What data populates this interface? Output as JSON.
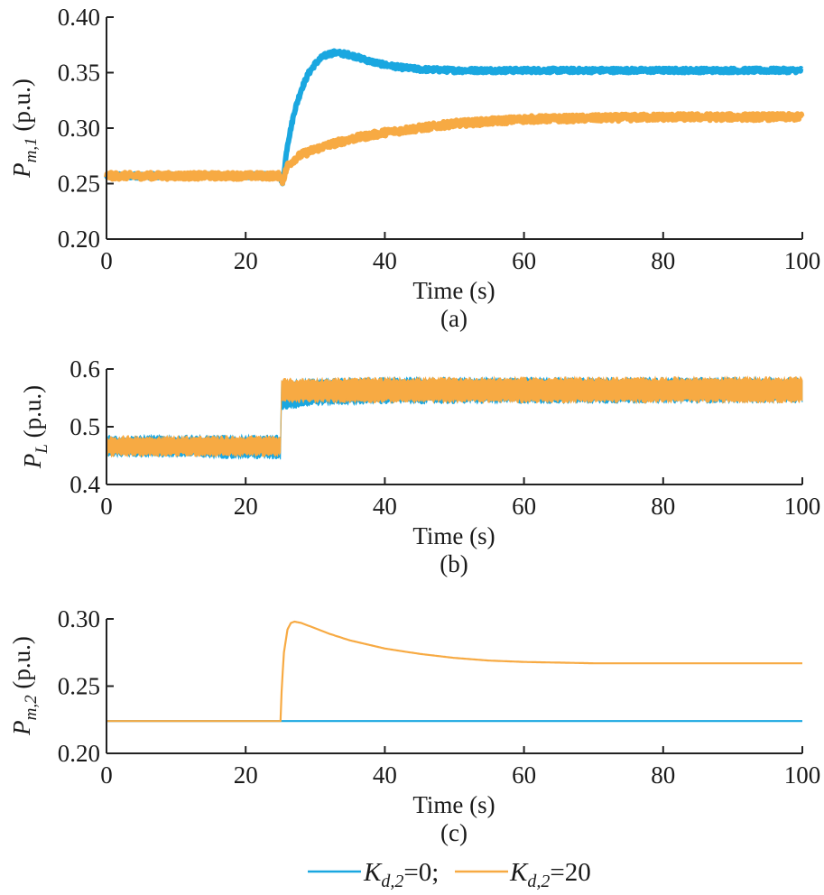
{
  "chart_data": [
    {
      "id": "a",
      "type": "line",
      "panel_label": "(a)",
      "xlabel": "Time (s)",
      "ylabel": "P_{m,1} (p.u.)",
      "ylabel_main": "P",
      "ylabel_sub": "m,1",
      "ylabel_unit": " (p.u.)",
      "xlim": [
        0,
        100
      ],
      "ylim": [
        0.2,
        0.4
      ],
      "xticks": [
        0,
        20,
        40,
        60,
        80,
        100
      ],
      "xtick_labels": [
        "0",
        "20",
        "40",
        "60",
        "80",
        "100"
      ],
      "yticks": [
        0.2,
        0.25,
        0.3,
        0.35,
        0.4
      ],
      "ytick_labels": [
        "0.20",
        "0.25",
        "0.30",
        "0.35",
        "0.40"
      ],
      "grid": false,
      "series": [
        {
          "name": "K_{d,2}=0",
          "color": "#1aa7e0",
          "noise_band": 0.004,
          "x": [
            0,
            25,
            25.3,
            26,
            27,
            28,
            29,
            30,
            31,
            32,
            33,
            34,
            35,
            36,
            38,
            40,
            42,
            45,
            50,
            60,
            70,
            80,
            90,
            100
          ],
          "y": [
            0.257,
            0.257,
            0.25,
            0.285,
            0.315,
            0.335,
            0.349,
            0.358,
            0.364,
            0.367,
            0.368,
            0.367,
            0.366,
            0.364,
            0.36,
            0.357,
            0.355,
            0.353,
            0.352,
            0.352,
            0.352,
            0.352,
            0.352,
            0.352
          ]
        },
        {
          "name": "K_{d,2}=20",
          "color": "#f7aa43",
          "noise_band": 0.006,
          "x": [
            0,
            25,
            25.3,
            26,
            27,
            28,
            30,
            32,
            35,
            40,
            45,
            50,
            55,
            60,
            70,
            80,
            90,
            100
          ],
          "y": [
            0.257,
            0.257,
            0.252,
            0.266,
            0.272,
            0.276,
            0.281,
            0.285,
            0.29,
            0.296,
            0.3,
            0.304,
            0.306,
            0.308,
            0.309,
            0.31,
            0.31,
            0.31
          ]
        }
      ]
    },
    {
      "id": "b",
      "type": "line",
      "panel_label": "(b)",
      "xlabel": "Time (s)",
      "ylabel": "P_L (p.u.)",
      "ylabel_main": "P",
      "ylabel_sub": "L",
      "ylabel_unit": " (p.u.)",
      "xlim": [
        0,
        100
      ],
      "ylim": [
        0.4,
        0.6
      ],
      "xticks": [
        0,
        20,
        40,
        60,
        80,
        100
      ],
      "xtick_labels": [
        "0",
        "20",
        "40",
        "60",
        "80",
        "100"
      ],
      "yticks": [
        0.4,
        0.5,
        0.6
      ],
      "ytick_labels": [
        "0.4",
        "0.5",
        "0.6"
      ],
      "grid": false,
      "series": [
        {
          "name": "K_{d,2}=0",
          "color": "#1aa7e0",
          "x": [
            0,
            10,
            25,
            25.01,
            30,
            40,
            100
          ],
          "y_low": [
            0.452,
            0.45,
            0.447,
            0.532,
            0.54,
            0.543,
            0.545
          ],
          "y_high": [
            0.482,
            0.482,
            0.482,
            0.578,
            0.58,
            0.582,
            0.582
          ]
        },
        {
          "name": "K_{d,2}=20",
          "color": "#f7aa43",
          "x": [
            0,
            10,
            25,
            25.01,
            30,
            40,
            100
          ],
          "y_low": [
            0.452,
            0.452,
            0.452,
            0.545,
            0.545,
            0.545,
            0.545
          ],
          "y_high": [
            0.481,
            0.481,
            0.481,
            0.58,
            0.581,
            0.582,
            0.583
          ]
        }
      ]
    },
    {
      "id": "c",
      "type": "line",
      "panel_label": "(c)",
      "xlabel": "Time (s)",
      "ylabel": "P_{m,2} (p.u.)",
      "ylabel_main": "P",
      "ylabel_sub": "m,2",
      "ylabel_unit": " (p.u.)",
      "xlim": [
        0,
        100
      ],
      "ylim": [
        0.2,
        0.3
      ],
      "xticks": [
        0,
        20,
        40,
        60,
        80,
        100
      ],
      "xtick_labels": [
        "0",
        "20",
        "40",
        "60",
        "80",
        "100"
      ],
      "yticks": [
        0.2,
        0.25,
        0.3
      ],
      "ytick_labels": [
        "0.20",
        "0.25",
        "0.30"
      ],
      "grid": false,
      "series": [
        {
          "name": "K_{d,2}=0",
          "color": "#1aa7e0",
          "x": [
            0,
            100
          ],
          "y": [
            0.224,
            0.224
          ]
        },
        {
          "name": "K_{d,2}=20",
          "color": "#f7aa43",
          "x": [
            0,
            25,
            25.2,
            25.5,
            26,
            26.5,
            27,
            28,
            30,
            32,
            35,
            40,
            45,
            50,
            55,
            60,
            70,
            80,
            90,
            100
          ],
          "y": [
            0.224,
            0.224,
            0.25,
            0.275,
            0.292,
            0.297,
            0.298,
            0.297,
            0.293,
            0.289,
            0.284,
            0.278,
            0.274,
            0.271,
            0.269,
            0.268,
            0.267,
            0.267,
            0.267,
            0.267
          ]
        }
      ]
    }
  ],
  "legend": {
    "placement": "bottom-center",
    "items": [
      {
        "main": "K",
        "sub": "d,2",
        "suffix": "=0;",
        "color": "#1aa7e0"
      },
      {
        "main": "K",
        "sub": "d,2",
        "suffix": "=20",
        "color": "#f7aa43"
      }
    ]
  }
}
